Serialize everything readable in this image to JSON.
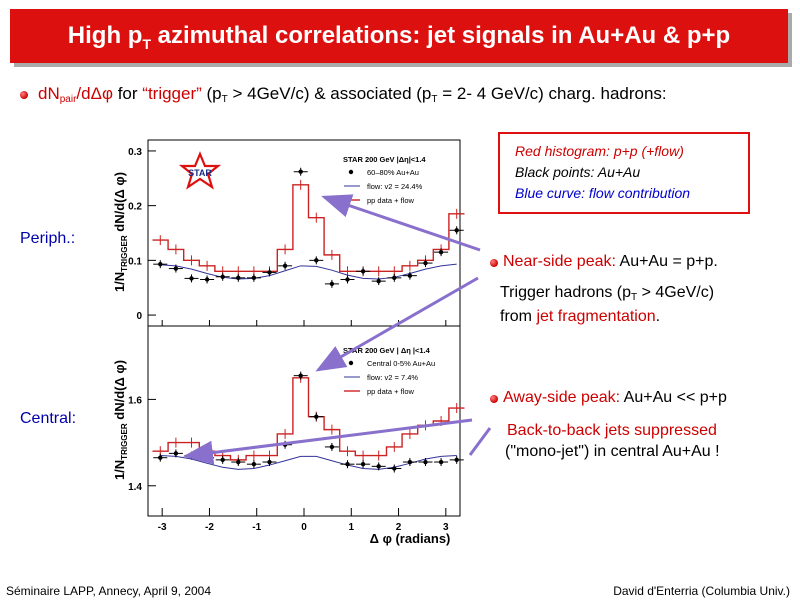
{
  "title": {
    "pre": "High p",
    "sub": "T",
    "post": " azimuthal correlations: jet signals in Au+Au & p+p"
  },
  "intro": {
    "part1": "dN",
    "sub1": "pair",
    "part2": "/dΔφ",
    "part3": " for ",
    "part4": "“trigger”",
    "part5": " (p",
    "sub2": "T",
    "part6": " > 4GeV/c) & associated (p",
    "sub3": "T",
    "part7": " = 2- 4 GeV/c) charg. hadrons:"
  },
  "legend_box": {
    "line1": "Red histogram: p+p (+flow)",
    "line2": "Black points: Au+Au",
    "line3": "Blue curve: flow contribution"
  },
  "labels": {
    "periph": "Periph.:",
    "central": "Central:"
  },
  "near_side": {
    "title": "Near-side peak:",
    "text": " Au+Au = p+p.",
    "line2a": "Trigger hadrons (p",
    "line2sub": "T",
    "line2b": " > 4GeV/c)",
    "line3a": "from ",
    "line3b": "jet fragmentation",
    "line3c": "."
  },
  "away_side": {
    "title": "Away-side peak:",
    "text": " Au+Au << p+p",
    "line2": "Back-to-back jets suppressed",
    "line3": "(\"mono-jet\") in central Au+Au !"
  },
  "footer": {
    "left": "Séminaire LAPP, Annecy, April 9, 2004",
    "right": "David d'Enterria (Columbia Univ.)"
  },
  "colors": {
    "title_bg": "#dd1010",
    "pp": "#cc2222",
    "auau": "#000000",
    "flow": "#333399",
    "arrow": "#8870cc"
  },
  "chart_data": [
    {
      "type": "line",
      "name": "peripheral",
      "logo": "STAR",
      "header": "STAR 200 GeV |Δη|<1.4",
      "ylabel": {
        "main": "1/N",
        "sub": "TRIGGER",
        "rest": " dN/d(Δ φ)"
      },
      "ylim": [
        -0.02,
        0.32
      ],
      "yticks": [
        0,
        0.1,
        0.2,
        0.3
      ],
      "ytick_labels": [
        "0",
        "0.1",
        "0.2",
        "0.3"
      ],
      "xlim": [
        -3.3,
        3.3
      ],
      "x": [
        -3.04,
        -2.71,
        -2.38,
        -2.05,
        -1.72,
        -1.39,
        -1.06,
        -0.73,
        -0.4,
        -0.07,
        0.26,
        0.59,
        0.92,
        1.25,
        1.58,
        1.91,
        2.24,
        2.57,
        2.9,
        3.23
      ],
      "series": [
        {
          "name": "60–80% Au+Au",
          "style": "points",
          "values": [
            0.093,
            0.085,
            0.067,
            0.065,
            0.07,
            0.068,
            0.068,
            0.078,
            0.09,
            0.262,
            0.1,
            0.057,
            0.065,
            0.08,
            0.062,
            0.068,
            0.072,
            0.095,
            0.115,
            0.155
          ]
        },
        {
          "name": "flow: v2 = 24.4%",
          "style": "smooth",
          "values": [
            0.092,
            0.09,
            0.084,
            0.076,
            0.069,
            0.066,
            0.067,
            0.072,
            0.081,
            0.09,
            0.089,
            0.082,
            0.073,
            0.067,
            0.066,
            0.069,
            0.076,
            0.084,
            0.09,
            0.093
          ]
        },
        {
          "name": "pp data + flow",
          "style": "step",
          "values": [
            0.137,
            0.12,
            0.1,
            0.09,
            0.08,
            0.08,
            0.08,
            0.08,
            0.12,
            0.238,
            0.178,
            0.11,
            0.08,
            0.08,
            0.08,
            0.08,
            0.09,
            0.1,
            0.12,
            0.185
          ]
        }
      ]
    },
    {
      "type": "line",
      "name": "central",
      "header": "STAR 200 GeV | Δη |<1.4",
      "ylabel": {
        "main": "1/N",
        "sub": "TRIGGER",
        "rest": " dN/d(Δ φ)"
      },
      "xlabel": "Δ φ (radians)",
      "ylim": [
        1.33,
        1.77
      ],
      "yticks": [
        1.4,
        1.6
      ],
      "ytick_labels": [
        "1.4",
        "1.6"
      ],
      "xlim": [
        -3.3,
        3.3
      ],
      "xticks": [
        -3,
        -2,
        -1,
        0,
        1,
        2,
        3
      ],
      "xtick_labels": [
        "-3",
        "-2",
        "-1",
        "0",
        "1",
        "2",
        "3"
      ],
      "x": [
        -3.04,
        -2.71,
        -2.38,
        -2.05,
        -1.72,
        -1.39,
        -1.06,
        -0.73,
        -0.4,
        -0.07,
        0.26,
        0.59,
        0.92,
        1.25,
        1.58,
        1.91,
        2.24,
        2.57,
        2.9,
        3.23
      ],
      "series": [
        {
          "name": "Central 0-5% Au+Au",
          "style": "points",
          "values": [
            1.465,
            1.475,
            1.47,
            1.465,
            1.46,
            1.455,
            1.45,
            1.455,
            1.495,
            1.655,
            1.56,
            1.49,
            1.45,
            1.45,
            1.445,
            1.44,
            1.455,
            1.455,
            1.455,
            1.46
          ]
        },
        {
          "name": "flow: v2 = 7.4%",
          "style": "smooth",
          "values": [
            1.47,
            1.468,
            1.462,
            1.452,
            1.443,
            1.438,
            1.44,
            1.448,
            1.458,
            1.468,
            1.468,
            1.458,
            1.448,
            1.44,
            1.438,
            1.443,
            1.452,
            1.462,
            1.468,
            1.47
          ]
        },
        {
          "name": "pp data + flow",
          "style": "step",
          "values": [
            1.48,
            1.5,
            1.5,
            1.48,
            1.47,
            1.46,
            1.47,
            1.47,
            1.52,
            1.65,
            1.56,
            1.53,
            1.48,
            1.47,
            1.47,
            1.49,
            1.52,
            1.54,
            1.55,
            1.58
          ]
        }
      ]
    }
  ]
}
